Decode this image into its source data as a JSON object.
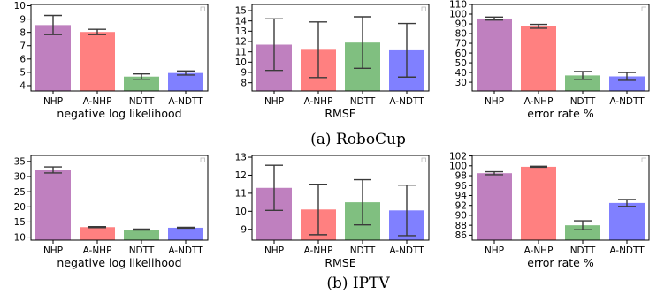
{
  "colors": {
    "NHP": "#bf80bf",
    "A-NHP": "#ff8080",
    "NDTT": "#80bf80",
    "A-NDTT": "#8080ff"
  },
  "captions": {
    "robocup": "(a) RoboCup",
    "iptv": "(b) IPTV"
  },
  "chart_data": [
    {
      "type": "bar",
      "group": "RoboCup",
      "xlabel": "negative log likelihood",
      "categories": [
        "NHP",
        "A-NHP",
        "NDTT",
        "A-NDTT"
      ],
      "values": [
        8.55,
        8.03,
        4.68,
        4.95
      ],
      "errors": [
        0.72,
        0.2,
        0.2,
        0.15
      ],
      "ylim": [
        3.6,
        10.1
      ],
      "yticks": [
        4,
        5,
        6,
        7,
        8,
        9,
        10
      ]
    },
    {
      "type": "bar",
      "group": "RoboCup",
      "xlabel": "RMSE",
      "categories": [
        "NHP",
        "A-NHP",
        "NDTT",
        "A-NDTT"
      ],
      "values": [
        11.7,
        11.2,
        11.9,
        11.15
      ],
      "errors": [
        2.5,
        2.7,
        2.5,
        2.6
      ],
      "ylim": [
        7.2,
        15.6
      ],
      "yticks": [
        8,
        9,
        10,
        11,
        12,
        13,
        14,
        15
      ]
    },
    {
      "type": "bar",
      "group": "RoboCup",
      "xlabel": "error rate %",
      "categories": [
        "NHP",
        "A-NHP",
        "NDTT",
        "A-NDTT"
      ],
      "values": [
        95.5,
        87.5,
        37,
        36
      ],
      "errors": [
        1.5,
        2,
        4,
        4
      ],
      "ylim": [
        21,
        110
      ],
      "yticks": [
        30,
        40,
        50,
        60,
        70,
        80,
        90,
        100,
        110
      ]
    },
    {
      "type": "bar",
      "group": "IPTV",
      "xlabel": "negative log likelihood",
      "categories": [
        "NHP",
        "A-NHP",
        "NDTT",
        "A-NDTT"
      ],
      "values": [
        32.2,
        13.3,
        12.5,
        13.1
      ],
      "errors": [
        1.0,
        0.15,
        0.15,
        0.15
      ],
      "ylim": [
        9,
        37
      ],
      "yticks": [
        10,
        15,
        20,
        25,
        30,
        35
      ]
    },
    {
      "type": "bar",
      "group": "IPTV",
      "xlabel": "RMSE",
      "categories": [
        "NHP",
        "A-NHP",
        "NDTT",
        "A-NDTT"
      ],
      "values": [
        11.3,
        10.1,
        10.5,
        10.05
      ],
      "errors": [
        1.25,
        1.4,
        1.25,
        1.4
      ],
      "ylim": [
        8.4,
        13.1
      ],
      "yticks": [
        9,
        10,
        11,
        12,
        13
      ]
    },
    {
      "type": "bar",
      "group": "IPTV",
      "xlabel": "error rate %",
      "categories": [
        "NHP",
        "A-NHP",
        "NDTT",
        "A-NDTT"
      ],
      "values": [
        98.5,
        99.8,
        88,
        92.5
      ],
      "errors": [
        0.3,
        0.1,
        0.9,
        0.7
      ],
      "ylim": [
        85,
        102.1
      ],
      "yticks": [
        86,
        88,
        90,
        92,
        94,
        96,
        98,
        100,
        102
      ]
    }
  ]
}
